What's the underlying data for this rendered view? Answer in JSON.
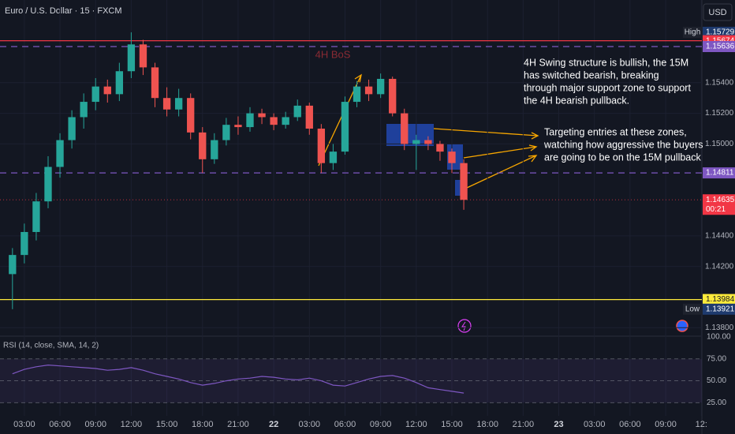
{
  "header": {
    "title": "Euro / U.S. Dollar · 15 · FXCM",
    "currency": "USD"
  },
  "chart_data": [
    {
      "type": "candlestick",
      "up_color": "#26a69a",
      "down_color": "#ef5350",
      "x": [
        2,
        3,
        4,
        5,
        6,
        7,
        8,
        9,
        10,
        11,
        12,
        13,
        14,
        15,
        16,
        17,
        18,
        19,
        20,
        21,
        22,
        23,
        24,
        25,
        26,
        27,
        28,
        29,
        30,
        31,
        32,
        33,
        34,
        35,
        36,
        37,
        38,
        39,
        40
      ],
      "ohlc": [
        [
          1.1415,
          1.1432,
          1.13921,
          1.14275
        ],
        [
          1.14275,
          1.1448,
          1.1422,
          1.14425
        ],
        [
          1.14425,
          1.1468,
          1.1437,
          1.14625
        ],
        [
          1.14625,
          1.1492,
          1.1458,
          1.1485
        ],
        [
          1.1485,
          1.1507,
          1.1478,
          1.15025
        ],
        [
          1.15025,
          1.1522,
          1.1497,
          1.15175
        ],
        [
          1.15175,
          1.1533,
          1.151,
          1.15275
        ],
        [
          1.15275,
          1.1543,
          1.1522,
          1.15375
        ],
        [
          1.15375,
          1.1542,
          1.1527,
          1.15325
        ],
        [
          1.15325,
          1.1553,
          1.1528,
          1.15475
        ],
        [
          1.15475,
          1.15729,
          1.1543,
          1.1565
        ],
        [
          1.1565,
          1.1568,
          1.1545,
          1.155
        ],
        [
          1.155,
          1.1553,
          1.1524,
          1.153
        ],
        [
          1.153,
          1.1537,
          1.1518,
          1.15225
        ],
        [
          1.15225,
          1.1536,
          1.1518,
          1.153
        ],
        [
          1.153,
          1.1533,
          1.1503,
          1.15075
        ],
        [
          1.15075,
          1.1511,
          1.14811,
          1.149
        ],
        [
          1.149,
          1.1507,
          1.1487,
          1.15025
        ],
        [
          1.15025,
          1.1517,
          1.1499,
          1.15125
        ],
        [
          1.15125,
          1.1518,
          1.1506,
          1.1511
        ],
        [
          1.1511,
          1.1524,
          1.1508,
          1.152
        ],
        [
          1.152,
          1.1523,
          1.1513,
          1.15175
        ],
        [
          1.15175,
          1.152,
          1.1509,
          1.15125
        ],
        [
          1.15125,
          1.1521,
          1.151,
          1.15175
        ],
        [
          1.15175,
          1.1529,
          1.1515,
          1.1525
        ],
        [
          1.1525,
          1.1527,
          1.1506,
          1.151
        ],
        [
          1.151,
          1.1513,
          1.14811,
          1.14875
        ],
        [
          1.14875,
          1.15,
          1.1483,
          1.1495
        ],
        [
          1.1495,
          1.1531,
          1.1493,
          1.15275
        ],
        [
          1.15275,
          1.1541,
          1.1524,
          1.15375
        ],
        [
          1.15375,
          1.1542,
          1.1528,
          1.15325
        ],
        [
          1.15325,
          1.1546,
          1.153,
          1.15425
        ],
        [
          1.15425,
          1.1544,
          1.1518,
          1.152
        ],
        [
          1.152,
          1.1523,
          1.1496,
          1.15
        ],
        [
          1.15,
          1.1506,
          1.1483,
          1.15025
        ],
        [
          1.15025,
          1.1505,
          1.1496,
          1.15
        ],
        [
          1.15,
          1.1502,
          1.1489,
          1.1495
        ],
        [
          1.1495,
          1.1497,
          1.1481,
          1.14875
        ],
        [
          1.14875,
          1.149,
          1.1457,
          1.14635
        ]
      ],
      "xlim": [
        0.95,
        60.05
      ],
      "xticks": [
        {
          "value": 3,
          "label": "03:00"
        },
        {
          "value": 6,
          "label": "06:00"
        },
        {
          "value": 9,
          "label": "09:00"
        },
        {
          "value": 12,
          "label": "12:00"
        },
        {
          "value": 15,
          "label": "15:00"
        },
        {
          "value": 18,
          "label": "18:00"
        },
        {
          "value": 21,
          "label": "21:00"
        },
        {
          "value": 24,
          "label": "22"
        },
        {
          "value": 27,
          "label": "03:00"
        },
        {
          "value": 30,
          "label": "06:00"
        },
        {
          "value": 33,
          "label": "09:00"
        },
        {
          "value": 36,
          "label": "12:00"
        },
        {
          "value": 39,
          "label": "15:00"
        },
        {
          "value": 42,
          "label": "18:00"
        },
        {
          "value": 45,
          "label": "21:00"
        },
        {
          "value": 48,
          "label": "23"
        },
        {
          "value": 51,
          "label": "03:00"
        },
        {
          "value": 54,
          "label": "06:00"
        },
        {
          "value": 57,
          "label": "09:00"
        },
        {
          "value": 60,
          "label": "12:"
        }
      ],
      "ylim": [
        1.1375,
        1.1594
      ],
      "yticks": [
        {
          "value": 1.154,
          "label": "1.15400"
        },
        {
          "value": 1.152,
          "label": "1.15200"
        },
        {
          "value": 1.15,
          "label": "1.15000"
        },
        {
          "value": 1.144,
          "label": "1.14400"
        },
        {
          "value": 1.142,
          "label": "1.14200"
        },
        {
          "value": 1.138,
          "label": "1.13800"
        }
      ],
      "levels": [
        {
          "value": 1.15729,
          "tag": "High",
          "color": "#1e3a6e",
          "style": "none"
        },
        {
          "value": 1.15674,
          "color": "#f23645",
          "style": "solid"
        },
        {
          "value": 1.15636,
          "color": "#7e57c2",
          "style": "dashed"
        },
        {
          "value": 1.14811,
          "color": "#7e57c2",
          "style": "dashed"
        },
        {
          "value": 1.14635,
          "color": "#f23645",
          "style": "dotted",
          "countdown": "00:21"
        },
        {
          "value": 1.13984,
          "color": "#ffeb3b",
          "style": "solid"
        },
        {
          "value": 1.13921,
          "tag": "Low",
          "color": "#1e3a6e",
          "style": "none"
        }
      ],
      "annotations": [
        {
          "text": "4H BoS"
        },
        {
          "text": [
            "4H Swing structure is bullish, the 15M",
            "has switched bearish, breaking",
            "through major support zone to support",
            "the 4H bearish pullback."
          ]
        },
        {
          "text": [
            "Targeting entries at these zones,",
            "watching how aggressive the buyers",
            "are going to be on the 15M pullback"
          ]
        }
      ]
    },
    {
      "type": "line",
      "title": "RSI (14, close, SMA, 14, 2)",
      "color": "#7e57c2",
      "x": [
        2,
        3,
        4,
        5,
        6,
        7,
        8,
        9,
        10,
        11,
        12,
        13,
        14,
        15,
        16,
        17,
        18,
        19,
        20,
        21,
        22,
        23,
        24,
        25,
        26,
        27,
        28,
        29,
        30,
        31,
        32,
        33,
        34,
        35,
        36,
        37,
        38,
        39,
        40
      ],
      "values": [
        58,
        63,
        66,
        68,
        67,
        66,
        65,
        64,
        62,
        63,
        65,
        62,
        58,
        55,
        52,
        48,
        45,
        47,
        50,
        52,
        53,
        55,
        54,
        52,
        51,
        53,
        50,
        45,
        44,
        48,
        52,
        55,
        56,
        53,
        48,
        42,
        40,
        38,
        36
      ],
      "ylim": [
        10,
        100
      ],
      "yticks": [
        {
          "value": 100,
          "label": "100.00"
        },
        {
          "value": 75,
          "label": "75.00"
        },
        {
          "value": 50,
          "label": "50.00"
        },
        {
          "value": 25,
          "label": "25.00"
        }
      ]
    }
  ]
}
